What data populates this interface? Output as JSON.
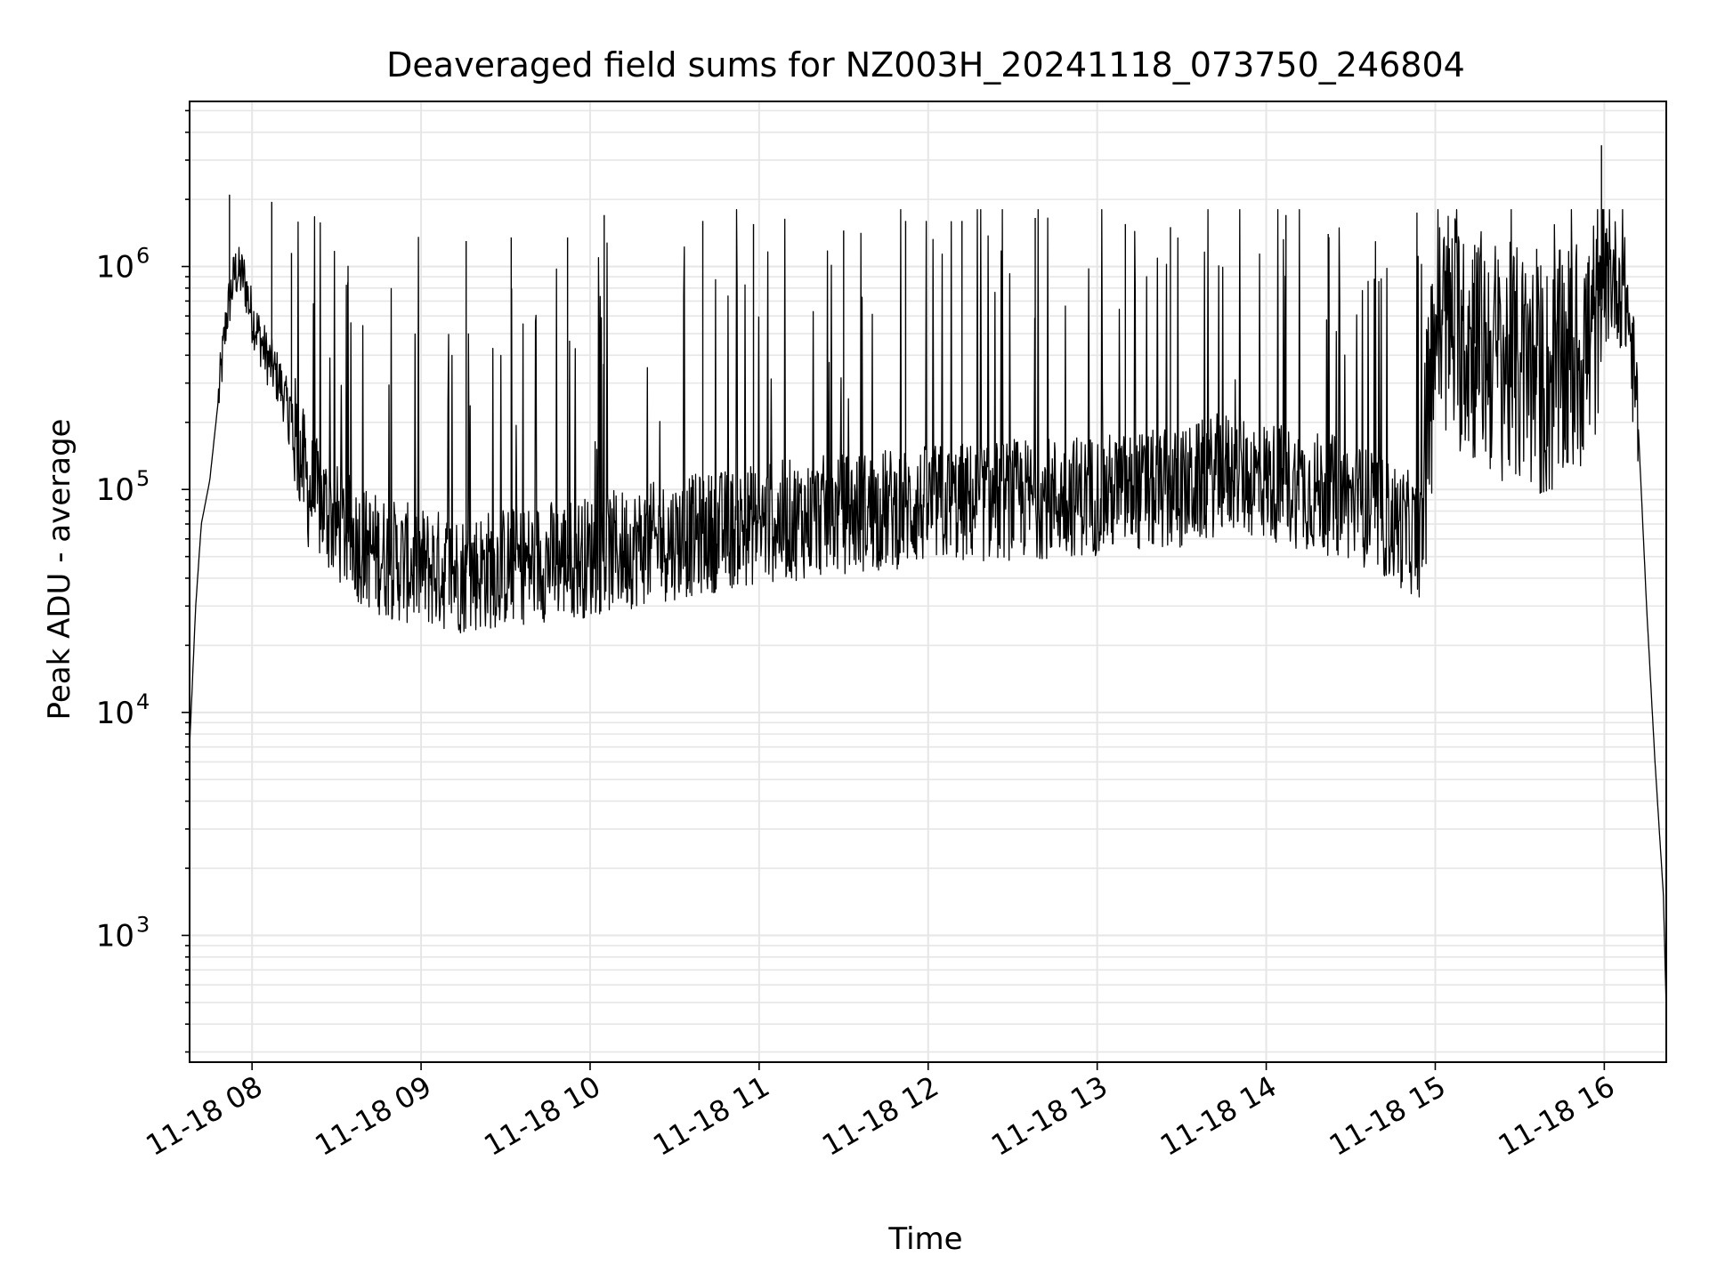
{
  "chart_data": {
    "type": "line",
    "title": "Deaveraged field sums for NZ003H_20241118_073750_246804",
    "xlabel": "Time",
    "ylabel": "Peak ADU - average",
    "xscale": "time",
    "yscale": "log",
    "grid": true,
    "line_color": "#000000",
    "grid_color": "#e6e6e6",
    "xlim": [
      "2024-11-18 07:37:50",
      "2024-11-18 16:22:00"
    ],
    "ylim": [
      270,
      5500000
    ],
    "x_ticks": [
      {
        "t": "2024-11-18 08:00",
        "label": "11-18 08"
      },
      {
        "t": "2024-11-18 09:00",
        "label": "11-18 09"
      },
      {
        "t": "2024-11-18 10:00",
        "label": "11-18 10"
      },
      {
        "t": "2024-11-18 11:00",
        "label": "11-18 11"
      },
      {
        "t": "2024-11-18 12:00",
        "label": "11-18 12"
      },
      {
        "t": "2024-11-18 13:00",
        "label": "11-18 13"
      },
      {
        "t": "2024-11-18 14:00",
        "label": "11-18 14"
      },
      {
        "t": "2024-11-18 15:00",
        "label": "11-18 15"
      },
      {
        "t": "2024-11-18 16:00",
        "label": "11-18 16"
      }
    ],
    "y_ticks": [
      {
        "v": 1000,
        "base": "10",
        "exp": "3"
      },
      {
        "v": 10000,
        "base": "10",
        "exp": "4"
      },
      {
        "v": 100000,
        "base": "10",
        "exp": "5"
      },
      {
        "v": 1000000,
        "base": "10",
        "exp": "6"
      }
    ],
    "series": [
      {
        "x": [
          "2024-11-18 07:37:50",
          "2024-11-18 07:40",
          "2024-11-18 07:42",
          "2024-11-18 07:45",
          "2024-11-18 07:48",
          "2024-11-18 07:51",
          "2024-11-18 07:54",
          "2024-11-18 07:57",
          "2024-11-18 08:00",
          "2024-11-18 08:05",
          "2024-11-18 08:10",
          "2024-11-18 08:15",
          "2024-11-18 08:20",
          "2024-11-18 08:25",
          "2024-11-18 08:30",
          "2024-11-18 08:40",
          "2024-11-18 08:50",
          "2024-11-18 09:00",
          "2024-11-18 09:15",
          "2024-11-18 09:30",
          "2024-11-18 09:45",
          "2024-11-18 10:00",
          "2024-11-18 10:15",
          "2024-11-18 10:30",
          "2024-11-18 10:45",
          "2024-11-18 11:00",
          "2024-11-18 11:30",
          "2024-11-18 12:00",
          "2024-11-18 12:30",
          "2024-11-18 13:00",
          "2024-11-18 13:30",
          "2024-11-18 13:45",
          "2024-11-18 14:00",
          "2024-11-18 14:30",
          "2024-11-18 14:55",
          "2024-11-18 15:00",
          "2024-11-18 15:20",
          "2024-11-18 15:40",
          "2024-11-18 15:55",
          "2024-11-18 16:00",
          "2024-11-18 16:04",
          "2024-11-18 16:08",
          "2024-11-18 16:12",
          "2024-11-18 16:15",
          "2024-11-18 16:18",
          "2024-11-18 16:21",
          "2024-11-18 16:22"
        ],
        "y": [
          7000,
          30000,
          70000,
          110000,
          250000,
          600000,
          950000,
          900000,
          600000,
          400000,
          300000,
          180000,
          100000,
          85000,
          70000,
          55000,
          48000,
          45000,
          42000,
          45000,
          48000,
          50000,
          55000,
          60000,
          65000,
          70000,
          78000,
          85000,
          90000,
          95000,
          100000,
          120000,
          110000,
          90000,
          60000,
          600000,
          400000,
          300000,
          450000,
          800000,
          900000,
          700000,
          200000,
          30000,
          6000,
          1500,
          450
        ],
        "spikes": [
          [
            "2024-11-18 07:52",
            2100000
          ],
          [
            "2024-11-18 08:07",
            1950000
          ],
          [
            "2024-11-18 08:14",
            1150000
          ],
          [
            "2024-11-18 08:34",
            850000
          ],
          [
            "2024-11-18 09:16",
            1300000
          ],
          [
            "2024-11-18 09:32",
            1350000
          ],
          [
            "2024-11-18 09:52",
            1350000
          ],
          [
            "2024-11-18 10:05",
            1700000
          ],
          [
            "2024-11-18 10:40",
            1600000
          ],
          [
            "2024-11-18 10:58",
            1550000
          ],
          [
            "2024-11-18 11:30",
            1450000
          ],
          [
            "2024-11-18 11:52",
            1600000
          ],
          [
            "2024-11-18 12:12",
            1600000
          ],
          [
            "2024-11-18 12:38",
            1650000
          ],
          [
            "2024-11-18 13:10",
            1550000
          ],
          [
            "2024-11-18 13:26",
            1500000
          ],
          [
            "2024-11-18 14:07",
            1700000
          ],
          [
            "2024-11-18 14:22",
            1400000
          ],
          [
            "2024-11-18 15:14",
            1250000
          ],
          [
            "2024-11-18 15:36",
            1200000
          ],
          [
            "2024-11-18 15:59",
            3500000
          ]
        ]
      }
    ]
  }
}
